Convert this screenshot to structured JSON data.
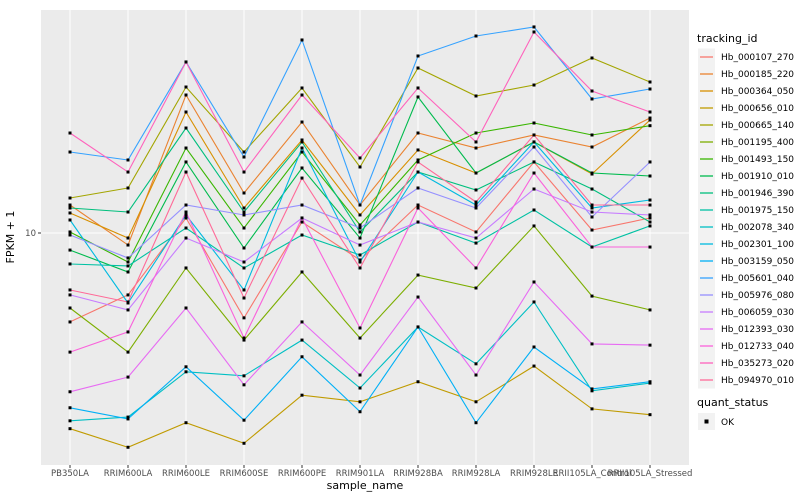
{
  "chart_data": {
    "type": "line",
    "title": "",
    "xlabel": "sample_name",
    "ylabel": "FPKM + 1",
    "y_scale": "log10",
    "y_tick_label": "10",
    "y_tick_value": 10,
    "grid": true,
    "legend_position": "right",
    "legend_title": "tracking_id",
    "quant_legend_title": "quant_status",
    "quant_status_label": "OK",
    "panel_bg": "#EBEBEB",
    "grid_color": "#FFFFFF",
    "tick_color": "#333333",
    "point_color": "#000000",
    "ylim": [
      1.08,
      85
    ],
    "categories": [
      "PB350LA",
      "RRIM600LA",
      "RRIM600LE",
      "RRIM600SE",
      "RRIM600PE",
      "RRIM901LA",
      "RRIM928BA",
      "RRIM928LA",
      "RRIM928LE",
      "RRII105LA_Control",
      "RRII105LA_Stressed"
    ],
    "series": [
      {
        "name": "Hb_000107_270",
        "color": "#F8766D",
        "values": [
          4.26,
          5.52,
          11.55,
          4.43,
          11.11,
          7.72,
          13.08,
          10.1,
          19.77,
          10.29,
          11.55
        ]
      },
      {
        "name": "Hb_000185_220",
        "color": "#EA8331",
        "values": [
          13.08,
          8.91,
          37.58,
          14.68,
          29.0,
          13.08,
          26.1,
          22.6,
          25.61,
          22.82,
          30.13
        ]
      },
      {
        "name": "Hb_000364_050",
        "color": "#D89000",
        "values": [
          12.12,
          9.53,
          31.93,
          12.71,
          24.41,
          11.89,
          22.18,
          17.78,
          23.95,
          17.61,
          29.56
        ]
      },
      {
        "name": "Hb_000656_010",
        "color": "#C09B00",
        "values": [
          1.53,
          1.28,
          1.62,
          1.33,
          2.11,
          1.98,
          2.4,
          1.98,
          2.79,
          1.85,
          1.75
        ]
      },
      {
        "name": "Hb_000665_140",
        "color": "#A3A500",
        "values": [
          13.99,
          15.4,
          40.58,
          21.75,
          40.2,
          18.84,
          48.69,
          37.23,
          41.36,
          53.6,
          42.58
        ]
      },
      {
        "name": "Hb_001195_400",
        "color": "#7CAE00",
        "values": [
          4.87,
          3.19,
          7.15,
          3.58,
          6.88,
          3.65,
          6.68,
          5.9,
          10.7,
          5.46,
          4.78
        ]
      },
      {
        "name": "Hb_001493_150",
        "color": "#39B600",
        "values": [
          10.1,
          7.57,
          22.6,
          10.49,
          21.75,
          10.8,
          20.15,
          26.1,
          28.73,
          25.61,
          28.0
        ]
      },
      {
        "name": "Hb_001910_010",
        "color": "#00BB4E",
        "values": [
          8.49,
          6.88,
          19.77,
          8.66,
          18.66,
          9.53,
          36.88,
          17.78,
          23.95,
          17.78,
          17.28
        ]
      },
      {
        "name": "Hb_001946_390",
        "color": "#00BF7D",
        "values": [
          12.71,
          12.23,
          27.38,
          12.23,
          23.95,
          10.1,
          17.95,
          15.11,
          19.77,
          15.25,
          11.11
        ]
      },
      {
        "name": "Hb_001975_150",
        "color": "#00C1A3",
        "values": [
          7.43,
          7.29,
          10.49,
          7.15,
          9.81,
          8.1,
          11.11,
          9.08,
          12.47,
          8.74,
          10.7
        ]
      },
      {
        "name": "Hb_002078_340",
        "color": "#00BFC4",
        "values": [
          1.65,
          1.71,
          2.64,
          2.54,
          3.58,
          2.26,
          4.06,
          2.85,
          5.16,
          2.2,
          2.37
        ]
      },
      {
        "name": "Hb_002301_100",
        "color": "#00BAE0",
        "values": [
          11.33,
          5.11,
          11.89,
          5.79,
          22.6,
          7.57,
          17.95,
          13.08,
          23.95,
          12.71,
          13.72
        ]
      },
      {
        "name": "Hb_003159_050",
        "color": "#00B0F6",
        "values": [
          1.87,
          1.68,
          2.77,
          1.66,
          3.05,
          1.8,
          4.06,
          1.62,
          3.35,
          2.24,
          2.4
        ]
      },
      {
        "name": "Hb_005601_040",
        "color": "#35A2FF",
        "values": [
          21.75,
          20.15,
          51.6,
          20.73,
          63.72,
          13.08,
          54.65,
          66.2,
          72.2,
          36.18,
          39.81
        ]
      },
      {
        "name": "Hb_005976_080",
        "color": "#9590FF",
        "values": [
          9.81,
          7.87,
          13.08,
          11.89,
          13.08,
          10.49,
          15.4,
          12.71,
          22.82,
          11.66,
          19.77
        ]
      },
      {
        "name": "Hb_006059_030",
        "color": "#C77CFF",
        "values": [
          5.52,
          4.78,
          9.53,
          7.57,
          11.55,
          8.91,
          11.11,
          9.53,
          15.25,
          12.23,
          11.89
        ]
      },
      {
        "name": "Hb_012393_030",
        "color": "#E76BF3",
        "values": [
          2.18,
          2.51,
          4.87,
          2.33,
          4.26,
          2.56,
          5.41,
          2.56,
          6.25,
          3.45,
          3.41
        ]
      },
      {
        "name": "Hb_012733_040",
        "color": "#FA62DB",
        "values": [
          3.19,
          3.87,
          12.23,
          3.65,
          11.55,
          4.02,
          12.71,
          7.15,
          17.78,
          8.74,
          8.74
        ]
      },
      {
        "name": "Hb_035273_020",
        "color": "#FF62BC",
        "values": [
          26.1,
          17.95,
          51.6,
          17.95,
          37.58,
          20.54,
          40.2,
          23.95,
          68.8,
          39.05,
          31.93
        ]
      },
      {
        "name": "Hb_094970_010",
        "color": "#FF6A98",
        "values": [
          5.79,
          5.16,
          17.95,
          5.36,
          16.94,
          7.15,
          19.77,
          13.46,
          25.61,
          13.08,
          13.08
        ]
      }
    ]
  }
}
